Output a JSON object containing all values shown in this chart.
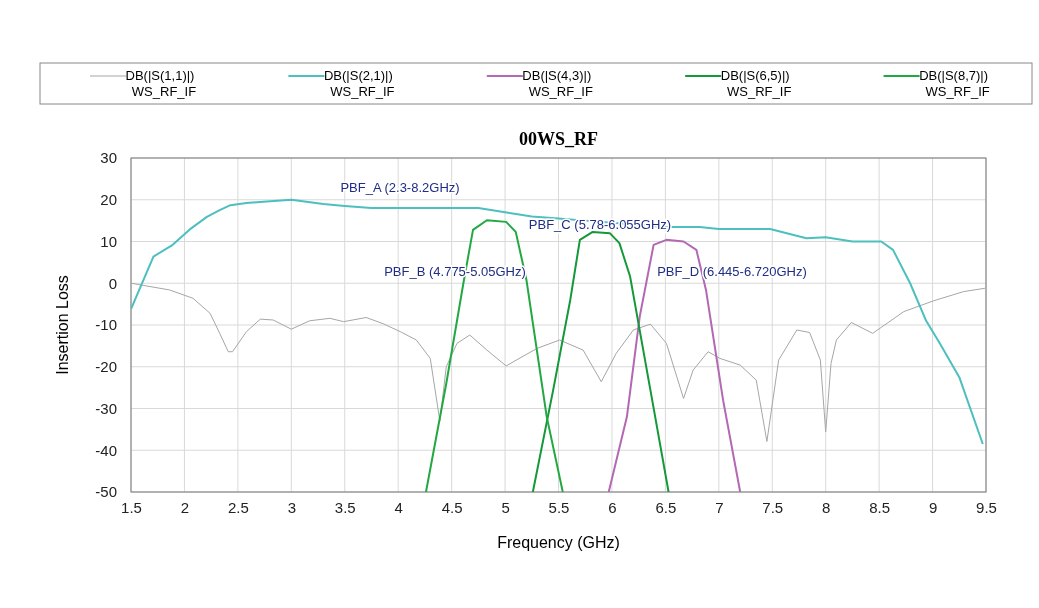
{
  "chart_data": {
    "type": "line",
    "title": "00WS_RF",
    "xlabel": "Frequency (GHz)",
    "ylabel": "Insertion Loss",
    "xlim": [
      1.5,
      9.5
    ],
    "xticks": [
      1.5,
      2,
      2.5,
      3,
      3.5,
      4,
      4.5,
      5,
      5.5,
      6,
      6.5,
      7,
      7.5,
      8,
      8.5,
      9,
      9.5
    ],
    "ylim": [
      -50,
      30
    ],
    "yticks": [
      -50,
      -40,
      -30,
      -20,
      -10,
      0,
      10,
      20,
      30
    ],
    "grid": true,
    "legend": "top",
    "line_style": "solid",
    "series": [
      {
        "name": "DB(|S(1,1)|)\nWS_RF_IF",
        "color": "#a6a6a6",
        "x": [
          1.5,
          1.86,
          2.08,
          2.24,
          2.33,
          2.41,
          2.45,
          2.58,
          2.71,
          2.83,
          3.0,
          3.17,
          3.36,
          3.49,
          3.7,
          3.86,
          4.02,
          4.17,
          4.3,
          4.39,
          4.45,
          4.55,
          4.67,
          4.83,
          5.01,
          5.14,
          5.3,
          5.51,
          5.73,
          5.9,
          6.04,
          6.2,
          6.36,
          6.51,
          6.67,
          6.76,
          6.9,
          7.01,
          7.2,
          7.35,
          7.45,
          7.56,
          7.73,
          7.85,
          7.95,
          8.0,
          8.05,
          8.1,
          8.24,
          8.44,
          8.73,
          9.01,
          9.29,
          9.49
        ],
        "values": [
          0,
          -1.6,
          -3.6,
          -7.2,
          -12,
          -16.4,
          -16.4,
          -11.6,
          -8.6,
          -8.8,
          -11,
          -9,
          -8.4,
          -9.2,
          -8.2,
          -9.7,
          -11.6,
          -13.6,
          -18,
          -33,
          -20,
          -14.4,
          -12.4,
          -16,
          -19.8,
          -17.9,
          -15.6,
          -13.6,
          -16,
          -23.6,
          -16.8,
          -11.2,
          -9.8,
          -14.4,
          -27.6,
          -20.8,
          -16.4,
          -18,
          -19.6,
          -23.2,
          -37.9,
          -18.4,
          -11.2,
          -11.8,
          -18.4,
          -35.6,
          -19.2,
          -13.6,
          -9.4,
          -12,
          -6.8,
          -4.2,
          -2,
          -1.2
        ]
      },
      {
        "name": "DB(|S(2,1)|)\nWS_RF_IF",
        "color": "#4dbfbf",
        "x": [
          1.5,
          1.71,
          1.89,
          2.05,
          2.21,
          2.33,
          2.43,
          2.58,
          2.77,
          3.0,
          3.3,
          3.5,
          3.75,
          4.0,
          4.5,
          4.75,
          5.0,
          5.25,
          5.5,
          5.75,
          6.0,
          6.25,
          6.5,
          6.82,
          7.0,
          7.48,
          7.82,
          8.0,
          8.25,
          8.52,
          8.63,
          8.79,
          8.94,
          9.07,
          9.25,
          9.47
        ],
        "values": [
          -6.2,
          6.4,
          9.2,
          12.9,
          15.9,
          17.5,
          18.7,
          19.2,
          19.6,
          20,
          19,
          18.5,
          18,
          18,
          18,
          18,
          17,
          16,
          15.5,
          15,
          14.5,
          14,
          13.5,
          13.5,
          13,
          13,
          10.8,
          11,
          10,
          10,
          8,
          0,
          -9,
          -14.5,
          -22.5,
          -38.5
        ]
      },
      {
        "name": "DB(|S(4,3)|)\nWS_RF_IF",
        "color": "#b368b3",
        "x": [
          5.97,
          6.14,
          6.26,
          6.39,
          6.51,
          6.67,
          6.79,
          6.88,
          7.04,
          7.2
        ],
        "values": [
          -50,
          -32,
          -8,
          9.2,
          10.4,
          10,
          8,
          -1.6,
          -28,
          -50
        ]
      },
      {
        "name": "DB(|S(6,5)|)\nWS_RF_IF",
        "color": "#15983a",
        "x": [
          5.26,
          5.45,
          5.61,
          5.7,
          5.82,
          5.98,
          6.07,
          6.17,
          6.36,
          6.53
        ],
        "values": [
          -50,
          -25.6,
          -4,
          10.4,
          12.3,
          12,
          9.6,
          1.6,
          -25.6,
          -50
        ]
      },
      {
        "name": "DB(|S(8,7)|)\nWS_RF_IF",
        "color": "#22a842",
        "x": [
          4.26,
          4.45,
          4.61,
          4.7,
          4.83,
          5.01,
          5.1,
          5.2,
          5.39,
          5.54
        ],
        "values": [
          -50,
          -24,
          0,
          12.8,
          15.1,
          14.7,
          12.3,
          0.8,
          -32,
          -50
        ]
      }
    ],
    "annotations": [
      "PBF_A (2.3-8.2GHz)",
      "PBF_B (4.775-5.05GHz)",
      "PBF_C (5.78-6.055GHz)",
      "PBF_D (6.445-6.720GHz)"
    ]
  }
}
